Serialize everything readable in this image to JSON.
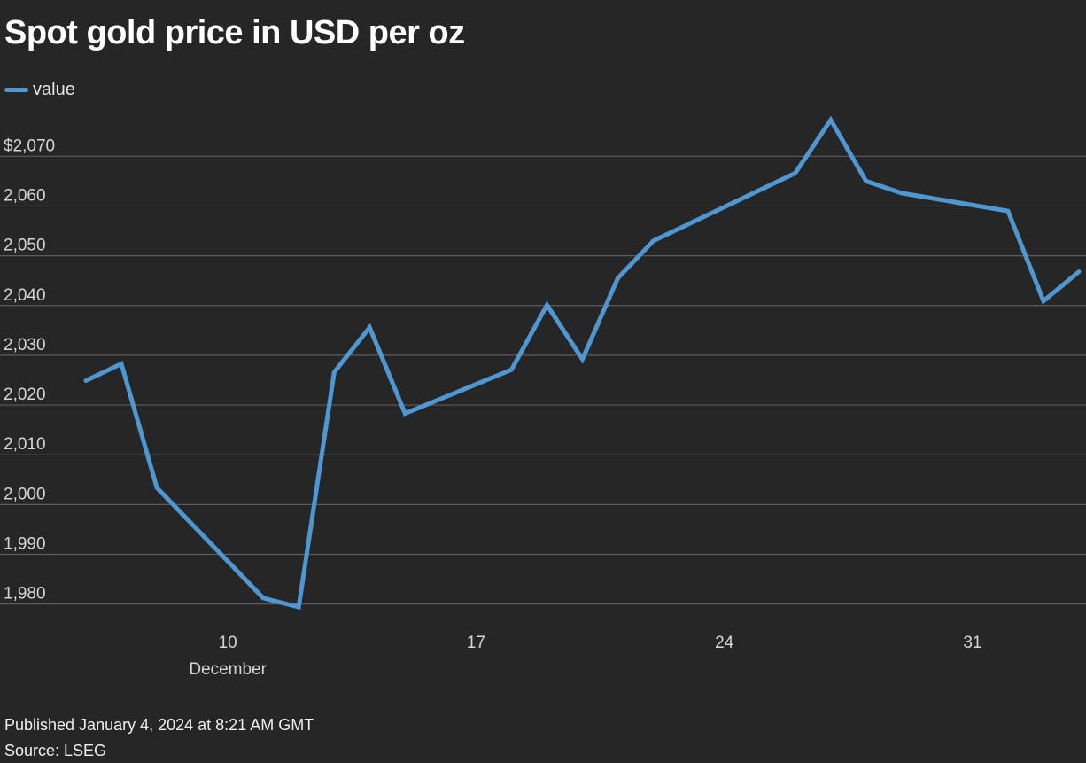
{
  "title": "Spot gold price in USD per oz",
  "footer": {
    "published": "Published January 4, 2024 at 8:21 AM GMT",
    "source": "Source: LSEG"
  },
  "chart_data": {
    "type": "line",
    "title": "Spot gold price in USD per oz",
    "xlabel": "",
    "ylabel": "",
    "legend_position": "top-left",
    "grid": true,
    "ylim": [
      1977,
      2077
    ],
    "xlim": [
      "2023-12-05",
      "2024-01-03"
    ],
    "y_ticks": [
      {
        "value": 1980,
        "label": "1,980"
      },
      {
        "value": 1990,
        "label": "1,990"
      },
      {
        "value": 2000,
        "label": "2,000"
      },
      {
        "value": 2010,
        "label": "2,010"
      },
      {
        "value": 2020,
        "label": "2,020"
      },
      {
        "value": 2030,
        "label": "2,030"
      },
      {
        "value": 2040,
        "label": "2,040"
      },
      {
        "value": 2050,
        "label": "2,050"
      },
      {
        "value": 2060,
        "label": "2,060"
      },
      {
        "value": 2070,
        "label": "$2,070"
      }
    ],
    "x_ticks": [
      {
        "date": "2023-12-10",
        "label": "10",
        "sublabel": "December"
      },
      {
        "date": "2023-12-17",
        "label": "17",
        "sublabel": ""
      },
      {
        "date": "2023-12-24",
        "label": "24",
        "sublabel": ""
      },
      {
        "date": "2023-12-31",
        "label": "31",
        "sublabel": ""
      }
    ],
    "series": [
      {
        "name": "value",
        "color": "#4e97d1",
        "points": [
          {
            "x": "2023-12-06",
            "y": 2024.9
          },
          {
            "x": "2023-12-07",
            "y": 2028.3
          },
          {
            "x": "2023-12-08",
            "y": 2003.4
          },
          {
            "x": "2023-12-11",
            "y": 1981.2
          },
          {
            "x": "2023-12-12",
            "y": 1979.4
          },
          {
            "x": "2023-12-13",
            "y": 2026.6
          },
          {
            "x": "2023-12-14",
            "y": 2035.6
          },
          {
            "x": "2023-12-15",
            "y": 2018.3
          },
          {
            "x": "2023-12-18",
            "y": 2027.1
          },
          {
            "x": "2023-12-19",
            "y": 2040.1
          },
          {
            "x": "2023-12-20",
            "y": 2029.2
          },
          {
            "x": "2023-12-21",
            "y": 2045.5
          },
          {
            "x": "2023-12-22",
            "y": 2053.0
          },
          {
            "x": "2023-12-26",
            "y": 2066.6
          },
          {
            "x": "2023-12-27",
            "y": 2077.3
          },
          {
            "x": "2023-12-28",
            "y": 2065.0
          },
          {
            "x": "2023-12-29",
            "y": 2062.6
          },
          {
            "x": "2024-01-01",
            "y": 2059.0
          },
          {
            "x": "2024-01-02",
            "y": 2040.9
          },
          {
            "x": "2024-01-03",
            "y": 2046.8
          }
        ]
      }
    ]
  }
}
